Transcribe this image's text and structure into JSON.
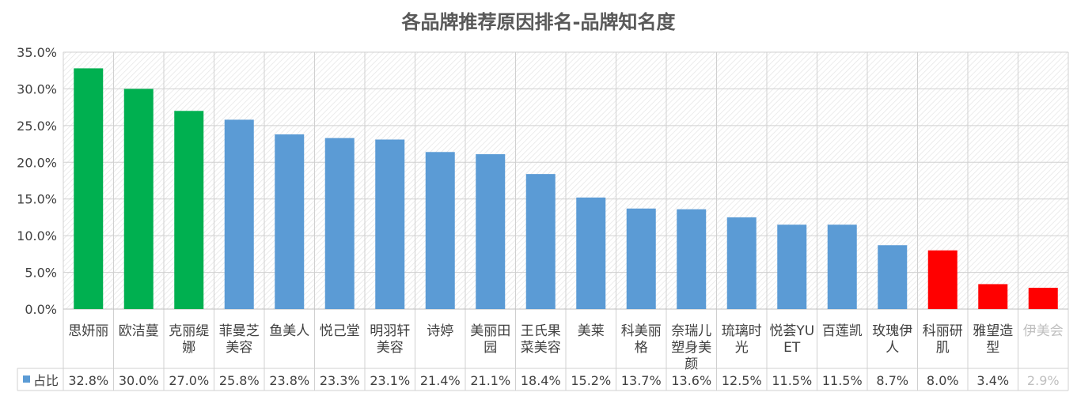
{
  "chart_data": {
    "type": "bar",
    "title": "各品牌推荐原因排名-品牌知名度",
    "categories": [
      [
        "思妍丽"
      ],
      [
        "欧洁蔓"
      ],
      [
        "克丽缇",
        "娜"
      ],
      [
        "菲曼芝",
        "美容"
      ],
      [
        "鱼美人"
      ],
      [
        "悦己堂"
      ],
      [
        "明羽轩",
        "美容"
      ],
      [
        "诗婷"
      ],
      [
        "美丽田",
        "园"
      ],
      [
        "王氏果",
        "菜美容"
      ],
      [
        "美莱"
      ],
      [
        "科美丽",
        "格"
      ],
      [
        "奈瑞儿",
        "塑身美",
        "颜"
      ],
      [
        "琉璃时",
        "光"
      ],
      [
        "悦荟YU",
        "ET"
      ],
      [
        "百莲凯"
      ],
      [
        "玫瑰伊",
        "人"
      ],
      [
        "科丽研",
        "肌"
      ],
      [
        "雅望造",
        "型"
      ],
      [
        "伊美会"
      ]
    ],
    "series": [
      {
        "name": "占比",
        "values": [
          32.8,
          30.0,
          27.0,
          25.8,
          23.8,
          23.3,
          23.1,
          21.4,
          21.1,
          18.4,
          15.2,
          13.7,
          13.6,
          12.5,
          11.5,
          11.5,
          8.7,
          8.0,
          3.4,
          2.9
        ],
        "value_labels": [
          "32.8%",
          "30.0%",
          "27.0%",
          "25.8%",
          "23.8%",
          "23.3%",
          "23.1%",
          "21.4%",
          "21.1%",
          "18.4%",
          "15.2%",
          "13.7%",
          "13.6%",
          "12.5%",
          "11.5%",
          "11.5%",
          "8.7%",
          "8.0%",
          "3.4%",
          "2.9%"
        ],
        "bar_colors": [
          "#00b050",
          "#00b050",
          "#00b050",
          "#5b9bd5",
          "#5b9bd5",
          "#5b9bd5",
          "#5b9bd5",
          "#5b9bd5",
          "#5b9bd5",
          "#5b9bd5",
          "#5b9bd5",
          "#5b9bd5",
          "#5b9bd5",
          "#5b9bd5",
          "#5b9bd5",
          "#5b9bd5",
          "#5b9bd5",
          "#ff0000",
          "#ff0000",
          "#ff0000"
        ]
      }
    ],
    "ylim": [
      0,
      35
    ],
    "y_ticks": [
      "0.0%",
      "5.0%",
      "10.0%",
      "15.0%",
      "20.0%",
      "25.0%",
      "30.0%",
      "35.0%"
    ],
    "grid": true,
    "legend": "data-table-row",
    "legend_color": "#5b9bd5",
    "colors": {
      "top3": "#00b050",
      "default": "#5b9bd5",
      "bottom3": "#ff0000",
      "text": "#404040",
      "last_label": "#bfbfbf"
    }
  }
}
